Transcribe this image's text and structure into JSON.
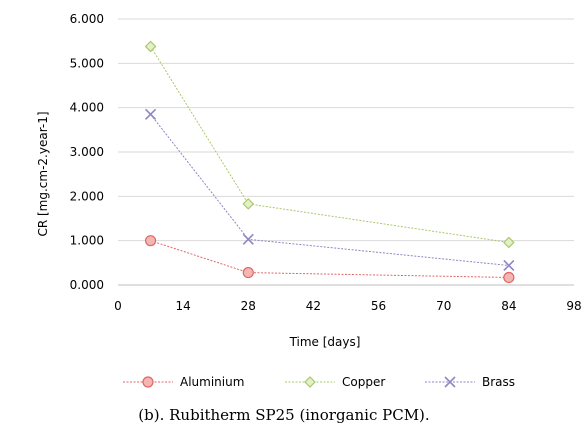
{
  "chart_data": {
    "type": "line",
    "xlabel": "Time [days]",
    "ylabel": "CR [mg.cm-2.year-1]",
    "xlim": [
      0,
      98
    ],
    "ylim": [
      0,
      6
    ],
    "x_ticks": [
      "0",
      "14",
      "28",
      "42",
      "56",
      "70",
      "84",
      "98"
    ],
    "y_ticks": [
      "0.000",
      "1.000",
      "2.000",
      "3.000",
      "4.000",
      "5.000",
      "6.000"
    ],
    "grid": "horizontal",
    "legend_position": "bottom",
    "series": [
      {
        "name": "Aluminium",
        "x": [
          7,
          28,
          84
        ],
        "y": [
          1.0,
          0.28,
          0.17
        ],
        "color": "#e06666",
        "fill": "#f4b6b3",
        "marker": "circle"
      },
      {
        "name": "Copper",
        "x": [
          7,
          28,
          84
        ],
        "y": [
          5.38,
          1.83,
          0.96
        ],
        "color": "#a9c96a",
        "fill": "#e4f0c8",
        "marker": "diamond"
      },
      {
        "name": "Brass",
        "x": [
          7,
          28,
          84
        ],
        "y": [
          3.85,
          1.03,
          0.44
        ],
        "color": "#8e86c2",
        "fill": "none",
        "marker": "x"
      }
    ]
  },
  "caption": "(b).  Rubitherm SP25 (inorganic PCM)."
}
